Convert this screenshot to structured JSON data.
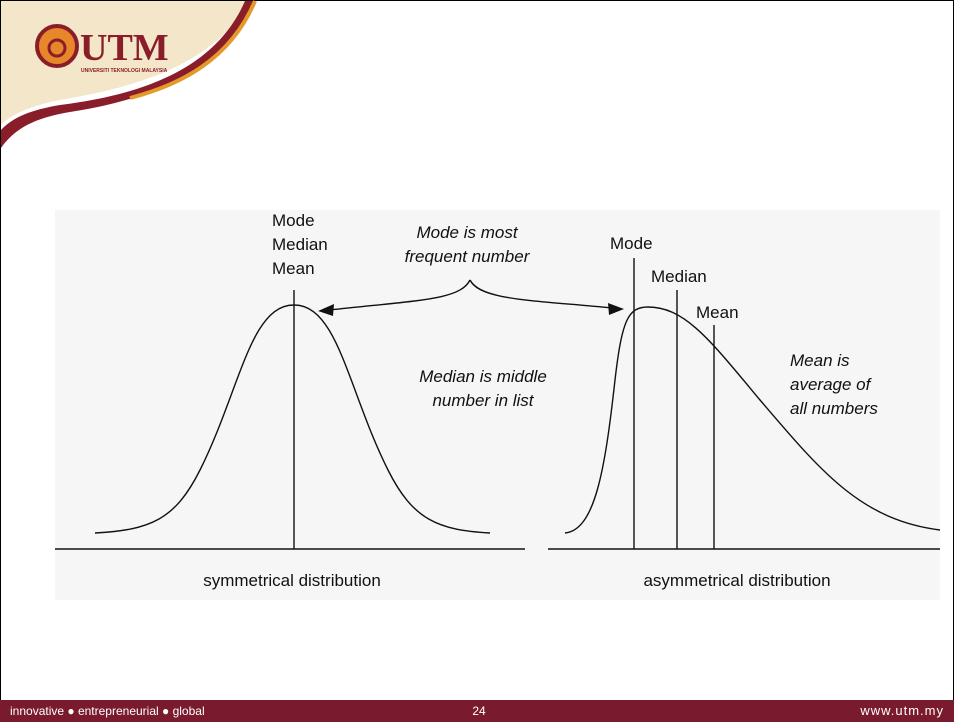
{
  "logo": {
    "name": "UTM",
    "subtitle": "UNIVERSITI TEKNOLOGI MALAYSIA"
  },
  "diagram": {
    "left_lines": [
      "Mode",
      "Median",
      "Mean"
    ],
    "mode_note": [
      "Mode is most",
      "frequent number"
    ],
    "median_note": [
      "Median is middle",
      "number in list"
    ],
    "mean_note": [
      "Mean is",
      "average of",
      "all numbers"
    ],
    "right_mode": "Mode",
    "right_median": "Median",
    "right_mean": "Mean",
    "left_caption": "symmetrical distribution",
    "right_caption": "asymmetrical distribution"
  },
  "footer": {
    "tagline": "innovative ● entrepreneurial ● global",
    "page": "24",
    "url": "www.utm.my"
  }
}
